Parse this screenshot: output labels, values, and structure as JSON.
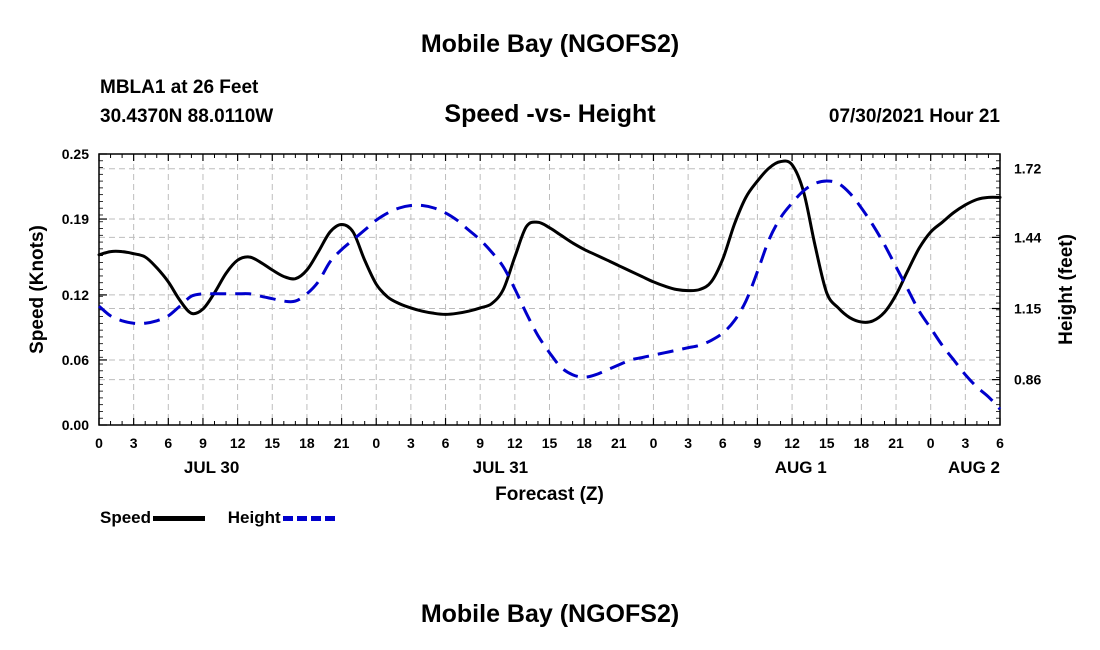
{
  "header": {
    "title": "Mobile Bay (NGOFS2)",
    "station": "MBLA1 at 26 Feet",
    "coords": "30.4370N  88.0110W",
    "subtitle": "Speed -vs- Height",
    "datetime": "07/30/2021 Hour 21"
  },
  "footer": {
    "title": "Mobile Bay (NGOFS2)"
  },
  "legend": {
    "speed_label": "Speed",
    "height_label": "Height"
  },
  "chart_data": {
    "type": "line",
    "title": "Speed -vs- Height",
    "xlabel": "Forecast (Z)",
    "ylabel": "Speed (Knots)",
    "y2label": "Height (feet)",
    "grid": true,
    "legend_position": "bottom-left",
    "xlim": [
      0,
      78
    ],
    "ylim": [
      0,
      0.25
    ],
    "y2lim": [
      0.675,
      1.78
    ],
    "x_tick_labels": [
      "0",
      "3",
      "6",
      "9",
      "12",
      "15",
      "18",
      "21",
      "0",
      "3",
      "6",
      "9",
      "12",
      "15",
      "18",
      "21",
      "0",
      "3",
      "6",
      "9",
      "12",
      "15",
      "18",
      "21",
      "0",
      "3",
      "6"
    ],
    "x_tick_step": 3,
    "day_labels": [
      {
        "label": "JUL 30",
        "x": 9.75
      },
      {
        "label": "JUL 31",
        "x": 34.75
      },
      {
        "label": "AUG 1",
        "x": 60.75
      },
      {
        "label": "AUG 2",
        "x": 75.75
      }
    ],
    "y_ticks": [
      0.0,
      0.06,
      0.12,
      0.19,
      0.25
    ],
    "y_tick_labels": [
      "0.00",
      "0.06",
      "0.12",
      "0.19",
      "0.25"
    ],
    "y2_ticks": [
      0.86,
      1.15,
      1.44,
      1.72
    ],
    "y2_tick_labels": [
      "0.86",
      "1.15",
      "1.44",
      "1.72"
    ],
    "series": [
      {
        "name": "Speed",
        "axis": "left",
        "color": "#000000",
        "dash": "solid",
        "x": [
          0,
          1,
          2,
          3,
          4,
          5,
          6,
          7,
          8,
          9,
          10,
          11,
          12,
          13,
          14,
          15,
          16,
          17,
          18,
          19,
          20,
          21,
          22,
          23,
          24,
          25,
          26,
          27,
          28,
          29,
          30,
          31,
          32,
          33,
          34,
          35,
          36,
          37,
          38,
          39,
          40,
          41,
          42,
          43,
          44,
          45,
          46,
          47,
          48,
          49,
          50,
          51,
          52,
          53,
          54,
          55,
          56,
          57,
          58,
          59,
          60,
          61,
          62,
          63,
          64,
          65,
          66,
          67,
          68,
          69,
          70,
          71,
          72,
          73,
          74,
          75,
          76,
          77,
          78
        ],
        "values": [
          0.157,
          0.16,
          0.16,
          0.158,
          0.155,
          0.145,
          0.132,
          0.115,
          0.103,
          0.107,
          0.122,
          0.14,
          0.152,
          0.155,
          0.15,
          0.143,
          0.137,
          0.135,
          0.143,
          0.16,
          0.178,
          0.185,
          0.178,
          0.152,
          0.13,
          0.118,
          0.112,
          0.108,
          0.105,
          0.103,
          0.102,
          0.103,
          0.105,
          0.108,
          0.112,
          0.125,
          0.155,
          0.183,
          0.187,
          0.182,
          0.175,
          0.168,
          0.162,
          0.157,
          0.152,
          0.147,
          0.142,
          0.137,
          0.132,
          0.128,
          0.125,
          0.124,
          0.125,
          0.132,
          0.153,
          0.185,
          0.21,
          0.225,
          0.237,
          0.243,
          0.24,
          0.215,
          0.165,
          0.122,
          0.108,
          0.099,
          0.095,
          0.096,
          0.104,
          0.12,
          0.142,
          0.163,
          0.178,
          0.187,
          0.196,
          0.203,
          0.208,
          0.21,
          0.21
        ]
      },
      {
        "name": "Height",
        "axis": "right",
        "color": "#0000cc",
        "dash": "dashed",
        "x": [
          0,
          1,
          2,
          3,
          4,
          5,
          6,
          7,
          8,
          9,
          10,
          11,
          12,
          13,
          14,
          15,
          16,
          17,
          18,
          19,
          20,
          21,
          22,
          23,
          24,
          25,
          26,
          27,
          28,
          29,
          30,
          31,
          32,
          33,
          34,
          35,
          36,
          37,
          38,
          39,
          40,
          41,
          42,
          43,
          44,
          45,
          46,
          47,
          48,
          49,
          50,
          51,
          52,
          53,
          54,
          55,
          56,
          57,
          58,
          59,
          60,
          61,
          62,
          63,
          64,
          65,
          66,
          67,
          68,
          69,
          70,
          71,
          72,
          73,
          74,
          75,
          76,
          77,
          78
        ],
        "values": [
          1.16,
          1.12,
          1.1,
          1.09,
          1.09,
          1.1,
          1.12,
          1.16,
          1.2,
          1.21,
          1.21,
          1.21,
          1.21,
          1.21,
          1.2,
          1.19,
          1.18,
          1.18,
          1.21,
          1.26,
          1.34,
          1.39,
          1.43,
          1.47,
          1.51,
          1.54,
          1.56,
          1.57,
          1.57,
          1.56,
          1.54,
          1.51,
          1.47,
          1.43,
          1.38,
          1.32,
          1.23,
          1.13,
          1.04,
          0.97,
          0.91,
          0.88,
          0.87,
          0.88,
          0.9,
          0.92,
          0.94,
          0.95,
          0.96,
          0.97,
          0.98,
          0.99,
          1.0,
          1.02,
          1.05,
          1.1,
          1.18,
          1.3,
          1.43,
          1.52,
          1.58,
          1.63,
          1.66,
          1.67,
          1.66,
          1.62,
          1.56,
          1.49,
          1.41,
          1.32,
          1.23,
          1.14,
          1.07,
          1.0,
          0.94,
          0.88,
          0.83,
          0.79,
          0.74
        ]
      }
    ]
  }
}
